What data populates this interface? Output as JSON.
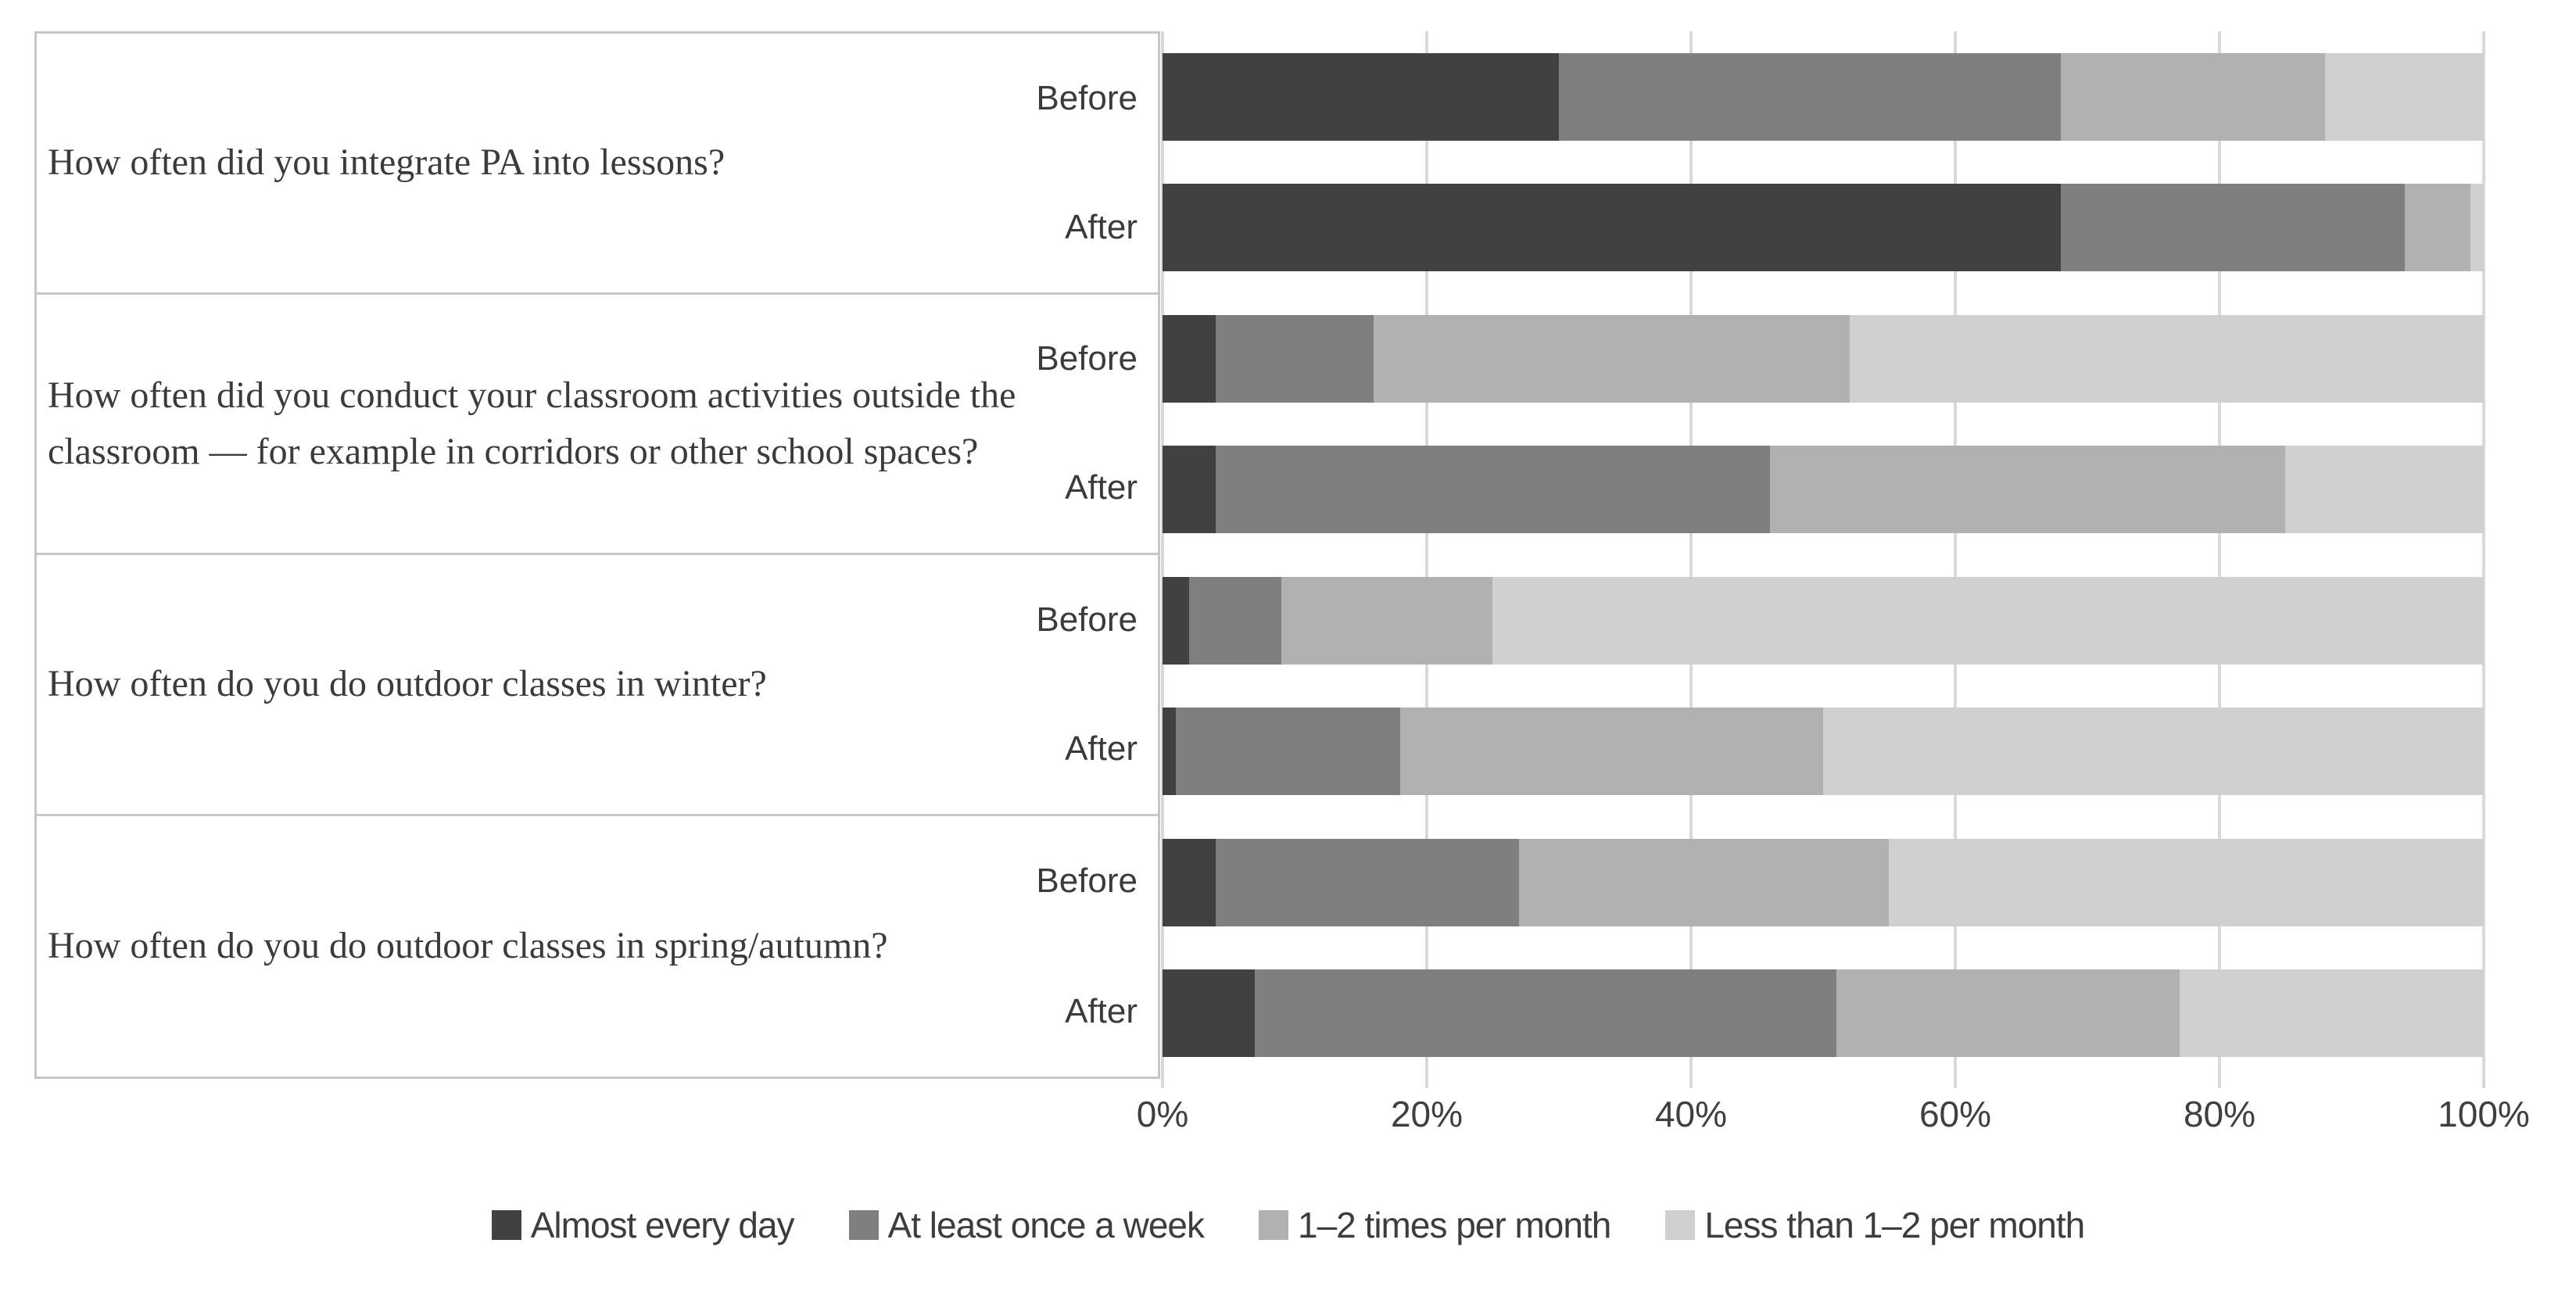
{
  "chart_data": {
    "type": "bar",
    "variant": "horizontal-stacked-100",
    "unit": "%",
    "axis": {
      "ticks": [
        "0%",
        "20%",
        "40%",
        "60%",
        "80%",
        "100%"
      ],
      "min": 0,
      "max": 100,
      "grid": true
    },
    "legend_position": "bottom",
    "series_colors": [
      "#414141",
      "#7f7f7f",
      "#b1b1b1",
      "#d0d0d0"
    ],
    "series_names": [
      "Almost every day",
      "At least once a week",
      "1–2 times per month",
      "Less than 1–2 per month"
    ],
    "questions": [
      {
        "text": "How often did you integrate PA into lessons?",
        "rows": [
          {
            "label": "Before",
            "values": [
              30,
              38,
              20,
              12
            ]
          },
          {
            "label": "After",
            "values": [
              68,
              26,
              5,
              1
            ]
          }
        ]
      },
      {
        "text": "How often did you conduct your classroom activities outside the classroom — for example in corridors or other school spaces?",
        "rows": [
          {
            "label": "Before",
            "values": [
              4,
              12,
              36,
              48
            ]
          },
          {
            "label": "After",
            "values": [
              4,
              42,
              39,
              15
            ]
          }
        ]
      },
      {
        "text": "How often do you do outdoor classes in winter?",
        "rows": [
          {
            "label": "Before",
            "values": [
              2,
              7,
              16,
              75
            ]
          },
          {
            "label": "After",
            "values": [
              1,
              17,
              32,
              50
            ]
          }
        ]
      },
      {
        "text": "How often do you do outdoor classes in spring/autumn?",
        "rows": [
          {
            "label": "Before",
            "values": [
              4,
              23,
              28,
              45
            ]
          },
          {
            "label": "After",
            "values": [
              7,
              44,
              26,
              23
            ]
          }
        ]
      }
    ],
    "colors": {
      "gridline": "#d9d9d9",
      "table_border": "#c6c6c6",
      "text": "#3b3b3b",
      "background": "#ffffff"
    }
  }
}
